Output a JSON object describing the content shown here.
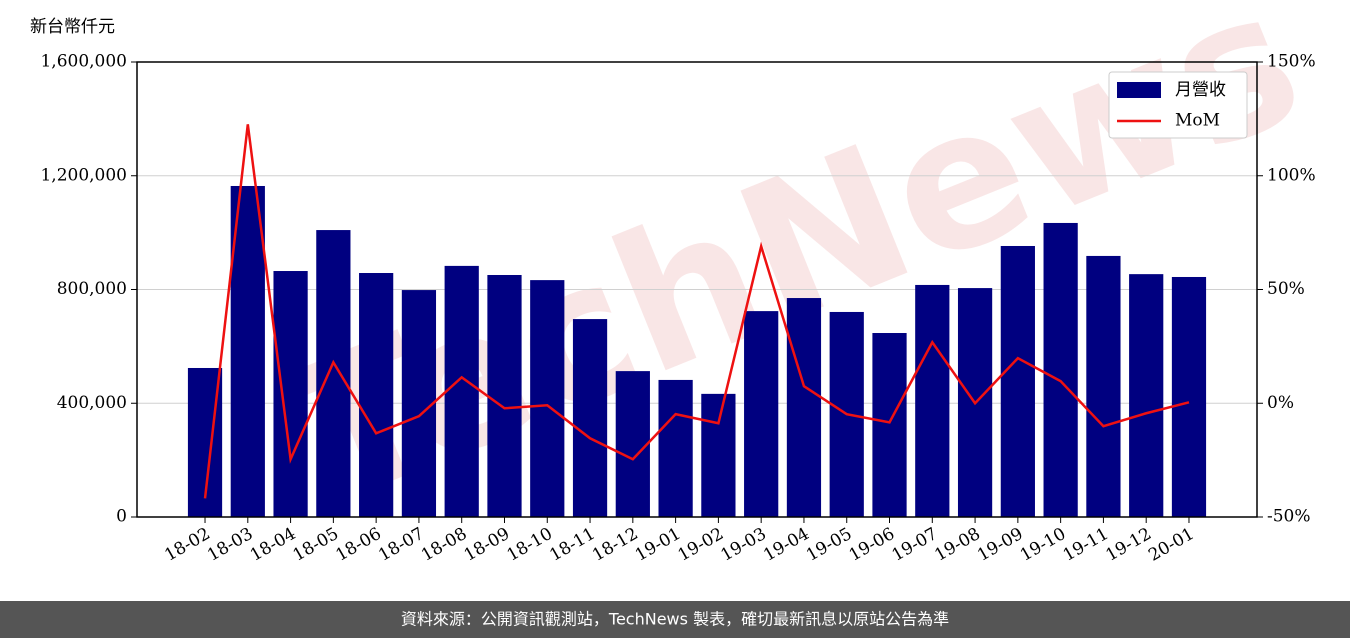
{
  "chart_data": {
    "type": "bar_line",
    "y_label": "新台幣仟元",
    "watermark": "TechNews",
    "footer": "資料來源：公開資訊觀測站，TechNews 製表，確切最新訊息以原站公告為準",
    "categories": [
      "18-02",
      "18-03",
      "18-04",
      "18-05",
      "18-06",
      "18-07",
      "18-08",
      "18-09",
      "18-10",
      "18-11",
      "18-12",
      "19-01",
      "19-02",
      "19-03",
      "19-04",
      "19-05",
      "19-06",
      "19-07",
      "19-08",
      "19-09",
      "19-10",
      "19-11",
      "19-12",
      "20-01"
    ],
    "series": [
      {
        "name": "月營收",
        "type": "bar",
        "color": "#000080",
        "values": [
          524000,
          1164000,
          865000,
          1009000,
          858000,
          798000,
          883000,
          851000,
          833000,
          696000,
          513000,
          482000,
          433000,
          724000,
          770000,
          721000,
          647000,
          816000,
          805000,
          953000,
          1034000,
          918000,
          854000,
          844000
        ]
      },
      {
        "name": "MoM",
        "type": "line",
        "color": "#ee1111",
        "axis": "y2",
        "values": [
          -41.8,
          122.6,
          -24.6,
          18,
          -13.2,
          -5.7,
          11.4,
          -2.2,
          -0.9,
          -15.4,
          -24.6,
          -4.8,
          -8.8,
          69,
          7.5,
          -4.8,
          -8.4,
          26.8,
          0,
          19.8,
          9.7,
          -10.1,
          -4.4,
          0.4
        ]
      }
    ],
    "ylim": [
      0,
      1600000
    ],
    "yticks": [
      {
        "value": 0,
        "label": "0"
      },
      {
        "value": 400000,
        "label": "400,000"
      },
      {
        "value": 800000,
        "label": "800,000"
      },
      {
        "value": 1200000,
        "label": "1,200,000"
      },
      {
        "value": 1600000,
        "label": "1,600,000"
      }
    ],
    "y2lim": [
      -50,
      150
    ],
    "y2ticks": [
      {
        "value": -50,
        "label": "-50%"
      },
      {
        "value": 0,
        "label": "0%"
      },
      {
        "value": 50,
        "label": "50%"
      },
      {
        "value": 100,
        "label": "100%"
      },
      {
        "value": 150,
        "label": "150%"
      }
    ],
    "grid": true,
    "legend": "upper right"
  }
}
